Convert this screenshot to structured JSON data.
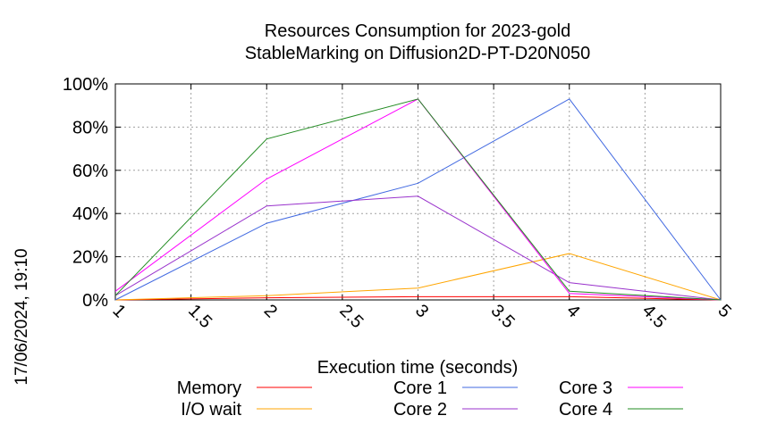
{
  "chart_data": {
    "type": "line",
    "title": "Resources Consumption for 2023-gold",
    "subtitle": "StableMarking on Diffusion2D-PT-D20N050",
    "xlabel": "Execution time (seconds)",
    "ylabel": "",
    "side_label": "17/06/2024, 19:10",
    "xlim": [
      1,
      5
    ],
    "ylim": [
      0,
      100
    ],
    "x_ticks": [
      "1",
      "1.5",
      "2",
      "2.5",
      "3",
      "3.5",
      "4",
      "4.5",
      "5"
    ],
    "y_ticks": [
      "0%",
      "20%",
      "40%",
      "60%",
      "80%",
      "100%"
    ],
    "grid": true,
    "legend_position": "bottom",
    "x": [
      1,
      2,
      3,
      4,
      5
    ],
    "series": [
      {
        "name": "Memory",
        "color": "#ff0000",
        "values": [
          0,
          1,
          1.5,
          1.5,
          0
        ]
      },
      {
        "name": "I/O wait",
        "color": "#ffa500",
        "values": [
          0,
          2,
          5.5,
          21.5,
          0
        ]
      },
      {
        "name": "Core 1",
        "color": "#4169e1",
        "values": [
          0,
          35.5,
          54,
          93,
          0
        ]
      },
      {
        "name": "Core 2",
        "color": "#9932cc",
        "values": [
          2,
          43.5,
          48,
          8,
          0
        ]
      },
      {
        "name": "Core 3",
        "color": "#ff00ff",
        "values": [
          4,
          56,
          93,
          3,
          0
        ]
      },
      {
        "name": "Core 4",
        "color": "#228b22",
        "values": [
          2,
          74.5,
          93,
          4,
          0
        ]
      }
    ]
  }
}
